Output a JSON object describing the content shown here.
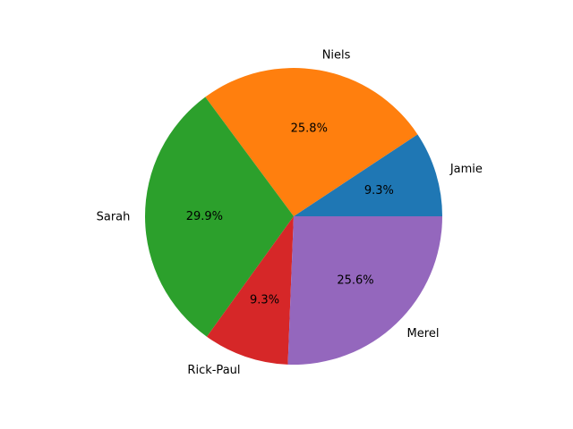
{
  "chart_data": {
    "type": "pie",
    "slices": [
      {
        "label": "Jamie",
        "value": 9.3,
        "pct_label": "9.3%",
        "color": "#1f77b4"
      },
      {
        "label": "Niels",
        "value": 25.8,
        "pct_label": "25.8%",
        "color": "#ff7f0e"
      },
      {
        "label": "Sarah",
        "value": 29.9,
        "pct_label": "29.9%",
        "color": "#2ca02c"
      },
      {
        "label": "Rick-Paul",
        "value": 9.3,
        "pct_label": "9.3%",
        "color": "#d62728"
      },
      {
        "label": "Merel",
        "value": 25.6,
        "pct_label": "25.6%",
        "color": "#9467bd"
      }
    ],
    "start_angle_deg": 0,
    "direction": "counterclockwise",
    "legend": "none"
  }
}
